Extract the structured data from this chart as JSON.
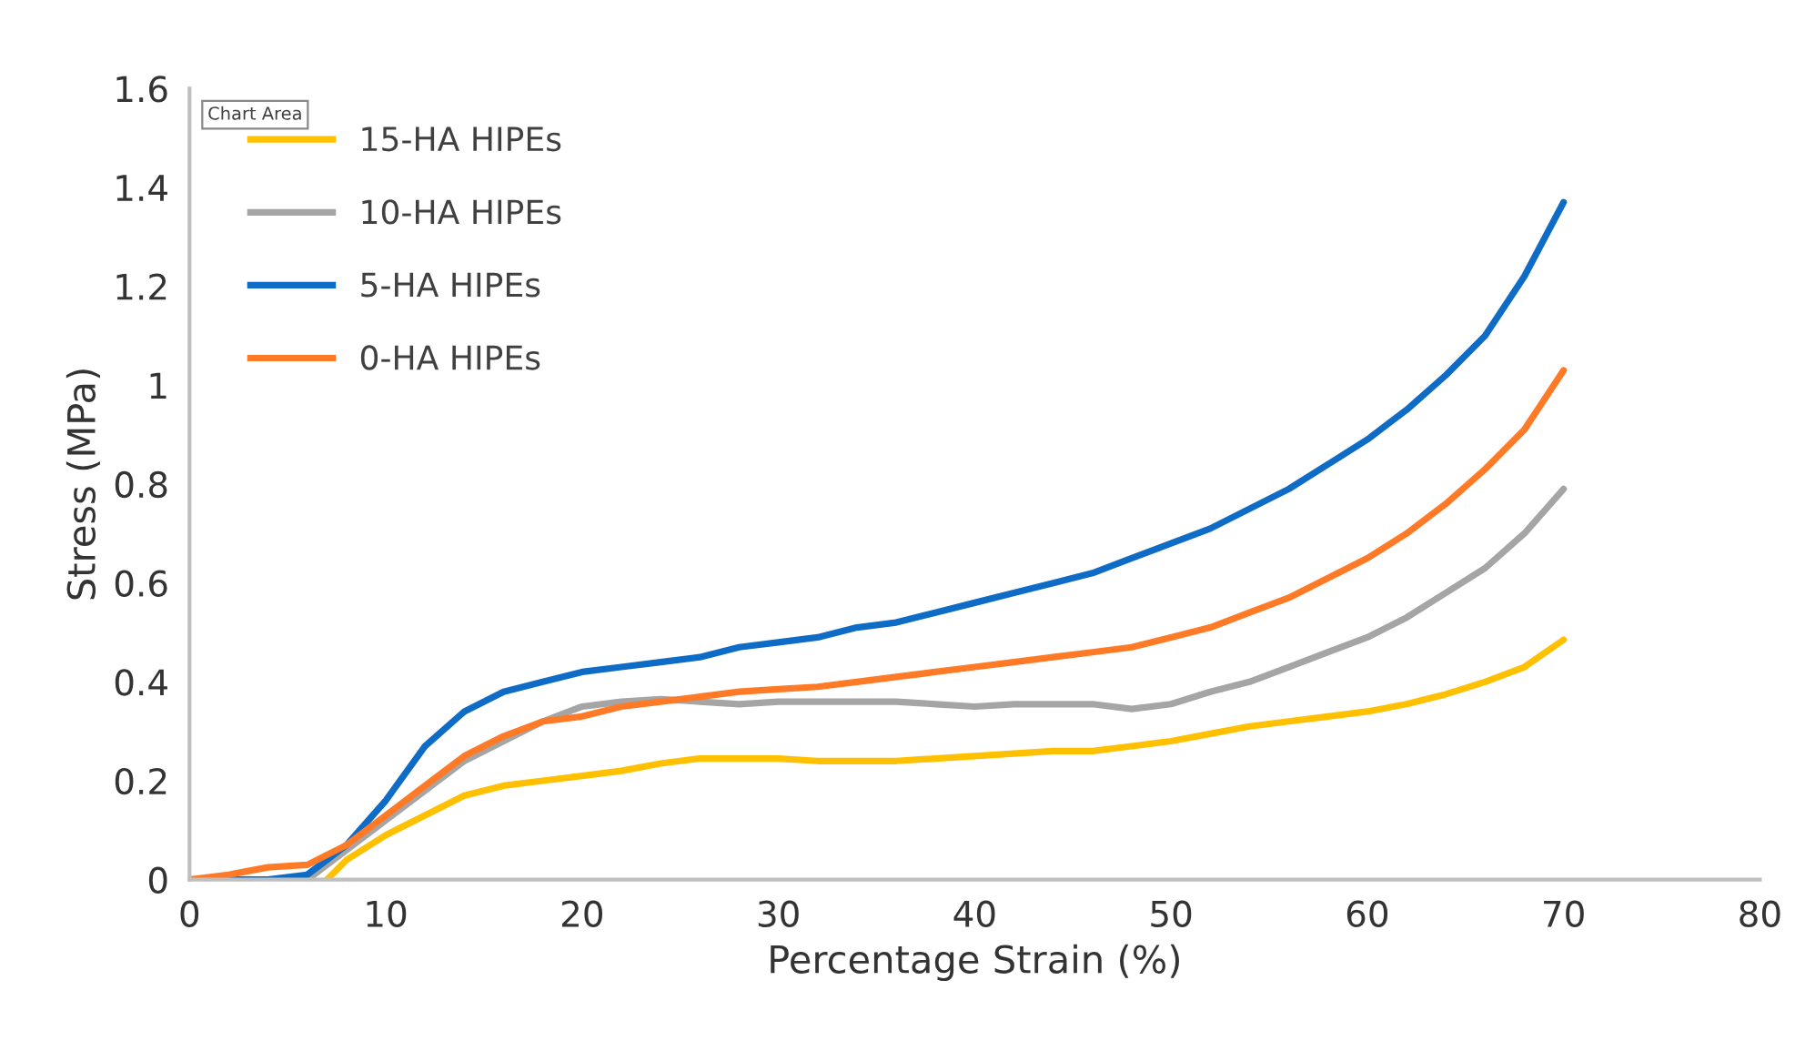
{
  "chart_data": {
    "type": "line",
    "xlabel": "Percentage Strain (%)",
    "ylabel": "Stress (MPa)",
    "xlim": [
      0,
      80
    ],
    "xticks": [
      0,
      10,
      20,
      30,
      40,
      50,
      60,
      70,
      80
    ],
    "ylim": [
      0,
      1.6
    ],
    "yticks": [
      0,
      0.2,
      0.4,
      0.6,
      0.8,
      1,
      1.2,
      1.4,
      1.6
    ],
    "grid": false,
    "legend": "top left",
    "marker": "none",
    "line_style": "solid",
    "annotations": [
      "Chart Area"
    ],
    "series": [
      {
        "name": "15-HA HIPEs",
        "color": "#ffc000",
        "x": [
          7,
          8,
          10,
          12,
          14,
          16,
          18,
          20,
          22,
          24,
          26,
          28,
          30,
          32,
          34,
          36,
          38,
          40,
          42,
          44,
          46,
          48,
          50,
          52,
          54,
          56,
          58,
          60,
          62,
          64,
          66,
          68,
          70
        ],
        "values": [
          0,
          0.04,
          0.09,
          0.13,
          0.17,
          0.19,
          0.2,
          0.21,
          0.22,
          0.235,
          0.245,
          0.245,
          0.245,
          0.24,
          0.24,
          0.24,
          0.245,
          0.25,
          0.255,
          0.26,
          0.26,
          0.27,
          0.28,
          0.295,
          0.31,
          0.32,
          0.33,
          0.34,
          0.355,
          0.375,
          0.4,
          0.43,
          0.485
        ]
      },
      {
        "name": "10-HA HIPEs",
        "color": "#a5a5a5",
        "x": [
          6,
          8,
          10,
          12,
          14,
          16,
          18,
          20,
          22,
          24,
          26,
          28,
          30,
          32,
          34,
          36,
          38,
          40,
          42,
          44,
          46,
          48,
          50,
          52,
          54,
          56,
          58,
          60,
          62,
          64,
          66,
          68,
          70
        ],
        "values": [
          0,
          0.06,
          0.12,
          0.18,
          0.24,
          0.28,
          0.32,
          0.35,
          0.36,
          0.365,
          0.36,
          0.355,
          0.36,
          0.36,
          0.36,
          0.36,
          0.355,
          0.35,
          0.355,
          0.355,
          0.355,
          0.345,
          0.355,
          0.38,
          0.4,
          0.43,
          0.46,
          0.49,
          0.53,
          0.58,
          0.63,
          0.7,
          0.79
        ]
      },
      {
        "name": "5-HA HIPEs",
        "color": "#0f6cc6",
        "x": [
          0,
          2,
          4,
          6,
          8,
          10,
          12,
          14,
          16,
          18,
          20,
          22,
          24,
          26,
          28,
          30,
          32,
          34,
          36,
          38,
          40,
          42,
          44,
          46,
          48,
          50,
          52,
          54,
          56,
          58,
          60,
          62,
          64,
          66,
          68,
          70
        ],
        "values": [
          0,
          0,
          0,
          0.01,
          0.07,
          0.16,
          0.27,
          0.34,
          0.38,
          0.4,
          0.42,
          0.43,
          0.44,
          0.45,
          0.47,
          0.48,
          0.49,
          0.51,
          0.52,
          0.54,
          0.56,
          0.58,
          0.6,
          0.62,
          0.65,
          0.68,
          0.71,
          0.75,
          0.79,
          0.84,
          0.89,
          0.95,
          1.02,
          1.1,
          1.22,
          1.37
        ]
      },
      {
        "name": "0-HA HIPEs",
        "color": "#ff7a26",
        "x": [
          0,
          2,
          4,
          6,
          8,
          10,
          12,
          14,
          16,
          18,
          20,
          22,
          24,
          26,
          28,
          30,
          32,
          34,
          36,
          38,
          40,
          42,
          44,
          46,
          48,
          50,
          52,
          54,
          56,
          58,
          60,
          62,
          64,
          66,
          68,
          70
        ],
        "values": [
          0,
          0.01,
          0.025,
          0.03,
          0.07,
          0.13,
          0.19,
          0.25,
          0.29,
          0.32,
          0.33,
          0.35,
          0.36,
          0.37,
          0.38,
          0.385,
          0.39,
          0.4,
          0.41,
          0.42,
          0.43,
          0.44,
          0.45,
          0.46,
          0.47,
          0.49,
          0.51,
          0.54,
          0.57,
          0.61,
          0.65,
          0.7,
          0.76,
          0.83,
          0.91,
          1.03
        ]
      }
    ]
  }
}
